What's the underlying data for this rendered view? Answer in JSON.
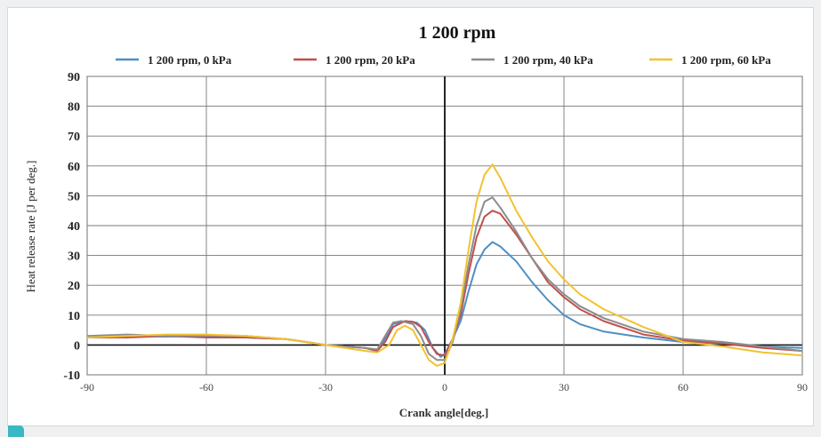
{
  "chart_data": {
    "type": "line",
    "title": "1 200 rpm",
    "xlabel": "Crank angle[deg.]",
    "ylabel": "Heat release rate [J per deg.]",
    "xlim": [
      -90,
      90
    ],
    "ylim": [
      -10,
      90
    ],
    "xticks": [
      -90,
      -60,
      -30,
      0,
      30,
      60,
      90
    ],
    "yticks": [
      -10,
      0,
      10,
      20,
      30,
      40,
      50,
      60,
      70,
      80,
      90
    ],
    "grid": true,
    "legend": "top",
    "series": [
      {
        "name": "1 200 rpm, 0 kPa",
        "color": "#4f8fc4",
        "points": [
          [
            -90,
            2.5
          ],
          [
            -80,
            3
          ],
          [
            -70,
            2.8
          ],
          [
            -60,
            3
          ],
          [
            -50,
            2.5
          ],
          [
            -40,
            2
          ],
          [
            -35,
            1
          ],
          [
            -30,
            0
          ],
          [
            -25,
            -0.5
          ],
          [
            -20,
            -1
          ],
          [
            -17,
            -2
          ],
          [
            -15,
            2
          ],
          [
            -13,
            7
          ],
          [
            -10,
            8
          ],
          [
            -7,
            7.5
          ],
          [
            -5,
            5
          ],
          [
            -3,
            -1
          ],
          [
            -1,
            -4
          ],
          [
            0,
            -3
          ],
          [
            2,
            2
          ],
          [
            4,
            8
          ],
          [
            6,
            18
          ],
          [
            8,
            27
          ],
          [
            10,
            32
          ],
          [
            12,
            34.5
          ],
          [
            14,
            33
          ],
          [
            18,
            28
          ],
          [
            22,
            21
          ],
          [
            26,
            15
          ],
          [
            30,
            10
          ],
          [
            34,
            7
          ],
          [
            40,
            4.5
          ],
          [
            50,
            2.5
          ],
          [
            60,
            1
          ],
          [
            70,
            0.5
          ],
          [
            80,
            -0.5
          ],
          [
            90,
            -1
          ]
        ]
      },
      {
        "name": "1 200 rpm, 20 kPa",
        "color": "#c0504d",
        "points": [
          [
            -90,
            2.5
          ],
          [
            -80,
            2.5
          ],
          [
            -70,
            3
          ],
          [
            -60,
            2.5
          ],
          [
            -50,
            2.5
          ],
          [
            -40,
            2
          ],
          [
            -35,
            1
          ],
          [
            -30,
            0
          ],
          [
            -25,
            -0.5
          ],
          [
            -20,
            -1
          ],
          [
            -17,
            -2
          ],
          [
            -15,
            1
          ],
          [
            -13,
            6
          ],
          [
            -10,
            8
          ],
          [
            -8,
            7.8
          ],
          [
            -6,
            6
          ],
          [
            -4,
            1
          ],
          [
            -2,
            -3
          ],
          [
            0,
            -3.5
          ],
          [
            2,
            2
          ],
          [
            4,
            10
          ],
          [
            6,
            24
          ],
          [
            8,
            36
          ],
          [
            10,
            43
          ],
          [
            12,
            45
          ],
          [
            14,
            44
          ],
          [
            18,
            37
          ],
          [
            22,
            29
          ],
          [
            26,
            21
          ],
          [
            30,
            16
          ],
          [
            34,
            12
          ],
          [
            40,
            8
          ],
          [
            50,
            3.5
          ],
          [
            60,
            1.5
          ],
          [
            70,
            0.5
          ],
          [
            80,
            -1
          ],
          [
            90,
            -2
          ]
        ]
      },
      {
        "name": "1 200 rpm, 40 kPa",
        "color": "#8c8c8c",
        "points": [
          [
            -90,
            3
          ],
          [
            -80,
            3.5
          ],
          [
            -70,
            3
          ],
          [
            -60,
            3
          ],
          [
            -50,
            3
          ],
          [
            -40,
            2
          ],
          [
            -35,
            1
          ],
          [
            -30,
            0
          ],
          [
            -25,
            -0.5
          ],
          [
            -20,
            -1
          ],
          [
            -17,
            -1.5
          ],
          [
            -15,
            3
          ],
          [
            -13,
            7.5
          ],
          [
            -11,
            8
          ],
          [
            -8,
            7
          ],
          [
            -6,
            3
          ],
          [
            -4,
            -3
          ],
          [
            -2,
            -5
          ],
          [
            0,
            -5
          ],
          [
            2,
            1
          ],
          [
            4,
            12
          ],
          [
            6,
            27
          ],
          [
            8,
            40
          ],
          [
            10,
            48
          ],
          [
            12,
            49.5
          ],
          [
            14,
            46
          ],
          [
            18,
            38
          ],
          [
            22,
            29
          ],
          [
            26,
            22
          ],
          [
            30,
            17
          ],
          [
            34,
            13
          ],
          [
            40,
            9
          ],
          [
            50,
            4.5
          ],
          [
            60,
            2
          ],
          [
            70,
            1
          ],
          [
            80,
            -0.5
          ],
          [
            90,
            -2
          ]
        ]
      },
      {
        "name": "1 200 rpm, 60 kPa",
        "color": "#f2c230",
        "points": [
          [
            -90,
            2.5
          ],
          [
            -80,
            3
          ],
          [
            -70,
            3.5
          ],
          [
            -60,
            3.5
          ],
          [
            -50,
            3
          ],
          [
            -40,
            2
          ],
          [
            -35,
            1
          ],
          [
            -30,
            0
          ],
          [
            -25,
            -1
          ],
          [
            -20,
            -2
          ],
          [
            -17,
            -2.5
          ],
          [
            -14,
            0
          ],
          [
            -12,
            5
          ],
          [
            -10,
            6.5
          ],
          [
            -8,
            5
          ],
          [
            -6,
            0
          ],
          [
            -4,
            -5
          ],
          [
            -2,
            -7
          ],
          [
            0,
            -6
          ],
          [
            2,
            2
          ],
          [
            4,
            14
          ],
          [
            6,
            32
          ],
          [
            8,
            48
          ],
          [
            10,
            57
          ],
          [
            12,
            60.5
          ],
          [
            14,
            56
          ],
          [
            18,
            45
          ],
          [
            22,
            36
          ],
          [
            26,
            28
          ],
          [
            30,
            22
          ],
          [
            34,
            17
          ],
          [
            40,
            12
          ],
          [
            50,
            6
          ],
          [
            60,
            1
          ],
          [
            70,
            -0.5
          ],
          [
            80,
            -2.5
          ],
          [
            90,
            -3.5
          ]
        ]
      }
    ]
  }
}
